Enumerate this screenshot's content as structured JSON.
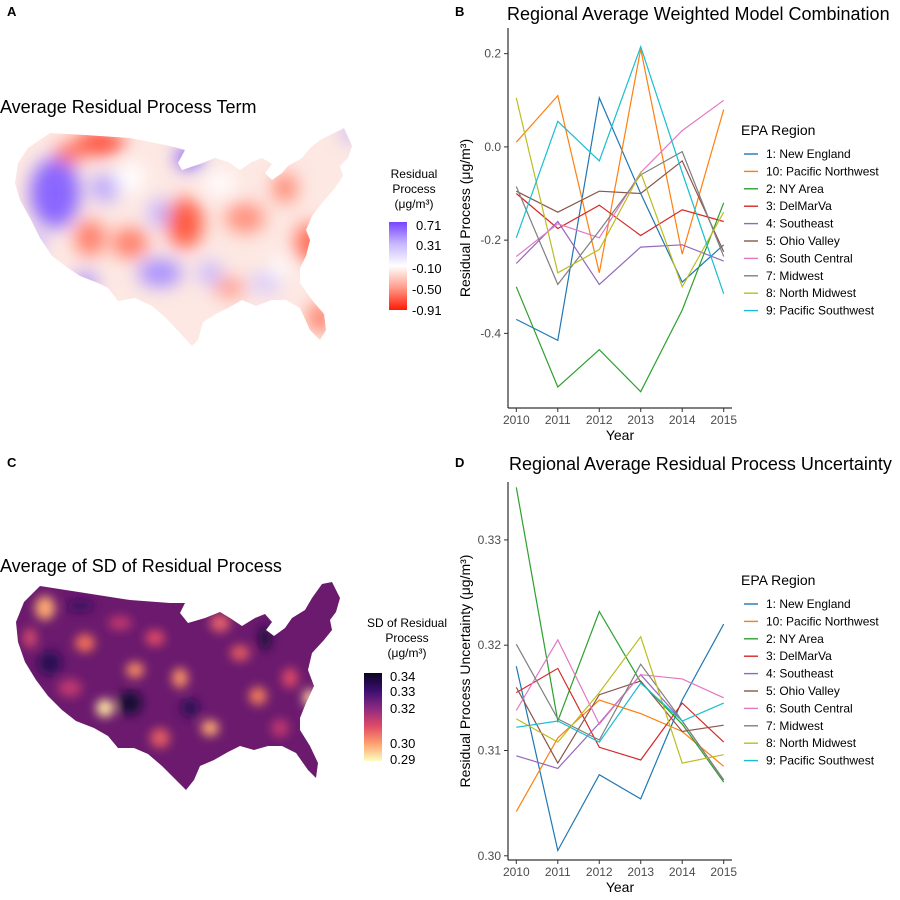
{
  "panels": {
    "a": {
      "letter": "A",
      "title": "Average Residual Process Term",
      "legend_title": [
        "Residual",
        "Process",
        "(μg/m³)"
      ],
      "legend_ticks": [
        "0.71",
        "0.31",
        "-0.10",
        "-0.50",
        "-0.91"
      ],
      "gradient": [
        "#7744ff",
        "#c8b8ff",
        "#ffffff",
        "#ff9a88",
        "#ff1a05"
      ]
    },
    "c": {
      "letter": "C",
      "title": "Average of SD of Residual Process",
      "legend_title": [
        "SD of Residual",
        "Process",
        "(μg/m³)"
      ],
      "legend_ticks": [
        "0.34",
        "0.33",
        "0.32",
        "0.30",
        "0.29"
      ],
      "gradient": [
        "#0a0420",
        "#3b0f70",
        "#8c2981",
        "#de4968",
        "#fe9f6d",
        "#fcfdbf"
      ]
    }
  },
  "chart_data": [
    {
      "panel": "B",
      "type": "line",
      "title": "Regional Average Weighted Model Combination",
      "xlabel": "Year",
      "ylabel": "Residual Process (μg/m³)",
      "x": [
        2010,
        2011,
        2012,
        2013,
        2014,
        2015
      ],
      "xlim": [
        2009.8,
        2015.2
      ],
      "ylim": [
        -0.56,
        0.255
      ],
      "yticks": [
        0.2,
        0.0,
        -0.2,
        -0.4
      ],
      "ytick_labels": [
        "0.2",
        "0.0",
        "-0.2",
        "-0.4"
      ],
      "legend_title": "EPA Region",
      "legend_position": "right",
      "grid": false,
      "series": [
        {
          "name": "1: New England",
          "color": "#1f77b4",
          "values": [
            -0.37,
            -0.415,
            0.105,
            -0.1,
            -0.29,
            -0.21
          ]
        },
        {
          "name": "10: Pacific Northwest",
          "color": "#ff7f0e",
          "values": [
            0.01,
            0.11,
            -0.27,
            0.21,
            -0.23,
            0.08
          ]
        },
        {
          "name": "2: NY Area",
          "color": "#2ca02c",
          "values": [
            -0.3,
            -0.515,
            -0.435,
            -0.525,
            -0.35,
            -0.12
          ]
        },
        {
          "name": "3: DelMarVa",
          "color": "#d62728",
          "values": [
            -0.1,
            -0.175,
            -0.125,
            -0.19,
            -0.135,
            -0.16
          ]
        },
        {
          "name": "4: Southeast",
          "color": "#9467bd",
          "values": [
            -0.25,
            -0.16,
            -0.295,
            -0.215,
            -0.21,
            -0.245
          ]
        },
        {
          "name": "5: Ohio Valley",
          "color": "#8c564b",
          "values": [
            -0.095,
            -0.14,
            -0.095,
            -0.1,
            -0.03,
            -0.225
          ]
        },
        {
          "name": "6: South Central",
          "color": "#e377c2",
          "values": [
            -0.235,
            -0.165,
            -0.195,
            -0.055,
            0.035,
            0.1
          ]
        },
        {
          "name": "7: Midwest",
          "color": "#7f7f7f",
          "values": [
            -0.085,
            -0.295,
            -0.18,
            -0.06,
            -0.01,
            -0.235
          ]
        },
        {
          "name": "8: North Midwest",
          "color": "#bcbd22",
          "values": [
            0.105,
            -0.27,
            -0.22,
            -0.055,
            -0.3,
            -0.14
          ]
        },
        {
          "name": "9: Pacific Southwest",
          "color": "#17becf",
          "values": [
            -0.195,
            0.055,
            -0.03,
            0.215,
            -0.055,
            -0.315
          ]
        }
      ]
    },
    {
      "panel": "D",
      "type": "line",
      "title": "Regional Average Residual Process Uncertainty",
      "xlabel": "Year",
      "ylabel": "Residual Process Uncertainty (μg/m³)",
      "x": [
        2010,
        2011,
        2012,
        2013,
        2014,
        2015
      ],
      "xlim": [
        2009.8,
        2015.2
      ],
      "ylim": [
        0.2996,
        0.3355
      ],
      "yticks": [
        0.33,
        0.32,
        0.31,
        0.3
      ],
      "ytick_labels": [
        "0.33",
        "0.32",
        "0.31",
        "0.30"
      ],
      "legend_title": "EPA Region",
      "legend_position": "right",
      "grid": false,
      "series": [
        {
          "name": "1: New England",
          "color": "#1f77b4",
          "values": [
            0.318,
            0.3005,
            0.3077,
            0.3054,
            0.3148,
            0.322
          ]
        },
        {
          "name": "10: Pacific Northwest",
          "color": "#ff7f0e",
          "values": [
            0.3042,
            0.3112,
            0.3148,
            0.3135,
            0.3118,
            0.3085
          ]
        },
        {
          "name": "2: NY Area",
          "color": "#2ca02c",
          "values": [
            0.335,
            0.3128,
            0.3232,
            0.3165,
            0.3125,
            0.307
          ]
        },
        {
          "name": "3: DelMarVa",
          "color": "#d62728",
          "values": [
            0.3155,
            0.3178,
            0.3103,
            0.3091,
            0.3145,
            0.3108
          ]
        },
        {
          "name": "4: Southeast",
          "color": "#9467bd",
          "values": [
            0.3095,
            0.3083,
            0.3126,
            0.3172,
            0.3128,
            0.3072
          ]
        },
        {
          "name": "5: Ohio Valley",
          "color": "#8c564b",
          "values": [
            0.316,
            0.3088,
            0.3153,
            0.3166,
            0.3118,
            0.3124
          ]
        },
        {
          "name": "6: South Central",
          "color": "#e377c2",
          "values": [
            0.3138,
            0.3205,
            0.3125,
            0.3172,
            0.3168,
            0.315
          ]
        },
        {
          "name": "7: Midwest",
          "color": "#7f7f7f",
          "values": [
            0.3201,
            0.313,
            0.311,
            0.3182,
            0.3128,
            0.3072
          ]
        },
        {
          "name": "8: North Midwest",
          "color": "#bcbd22",
          "values": [
            0.313,
            0.3108,
            0.3155,
            0.3208,
            0.3088,
            0.3096
          ]
        },
        {
          "name": "9: Pacific Southwest",
          "color": "#17becf",
          "values": [
            0.3122,
            0.3128,
            0.3108,
            0.3164,
            0.3128,
            0.3145
          ]
        }
      ]
    }
  ]
}
